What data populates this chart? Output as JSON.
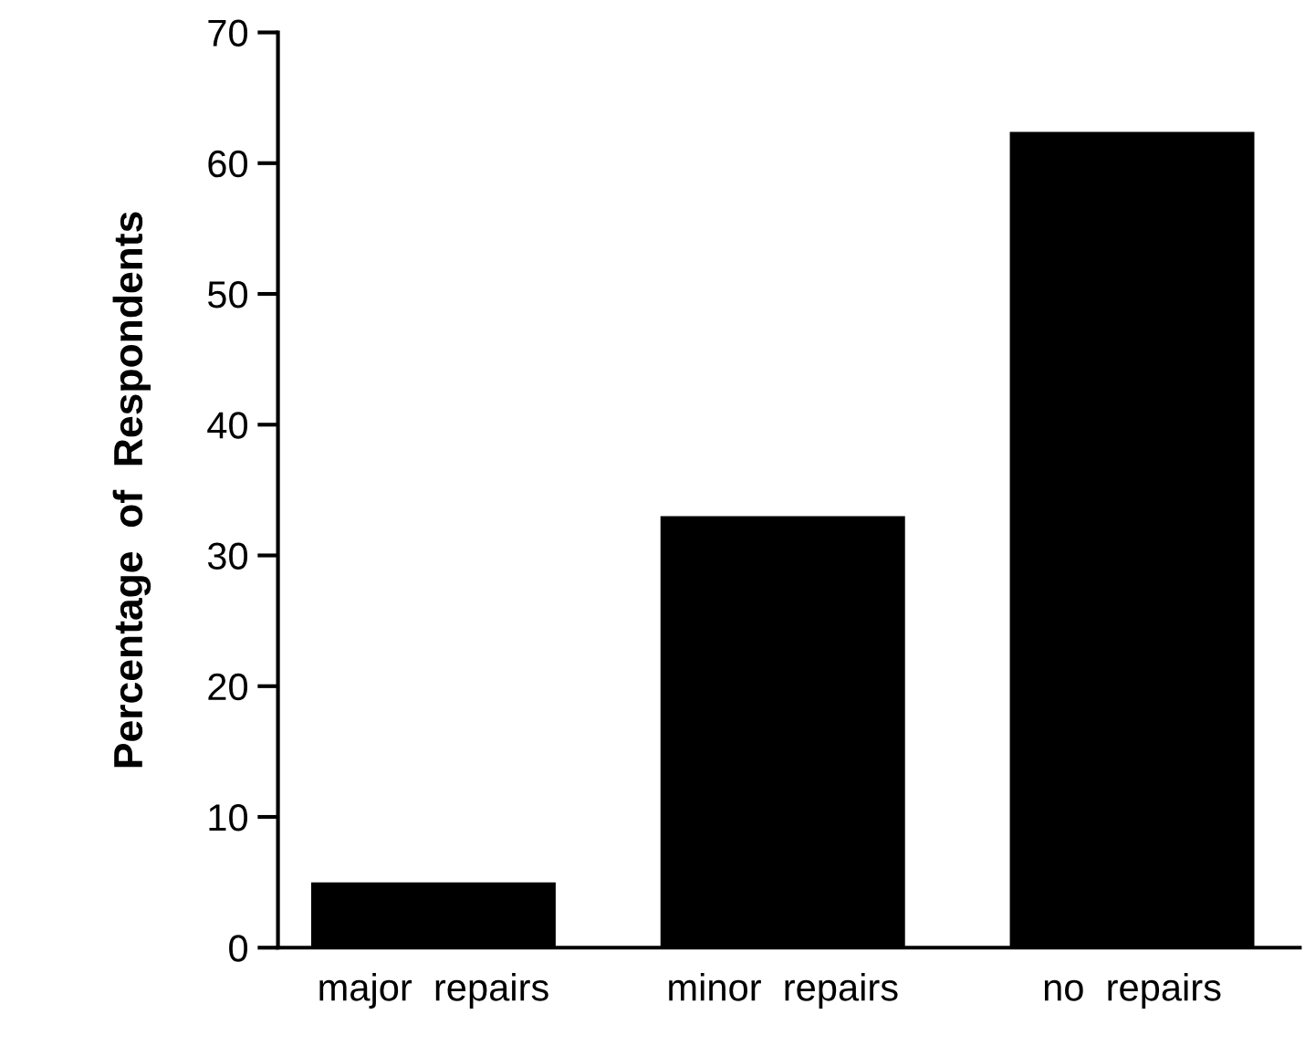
{
  "chart_data": {
    "type": "bar",
    "ylabel": "Percentage  of  Respondents",
    "categories": [
      "major  repairs",
      "minor  repairs",
      "no  repairs"
    ],
    "values": [
      5,
      33,
      62.4
    ],
    "color": "#000000",
    "ylim": [
      0,
      70
    ],
    "yticks": [
      0,
      10,
      20,
      30,
      40,
      50,
      60,
      70
    ],
    "grid": false,
    "legend": false
  }
}
